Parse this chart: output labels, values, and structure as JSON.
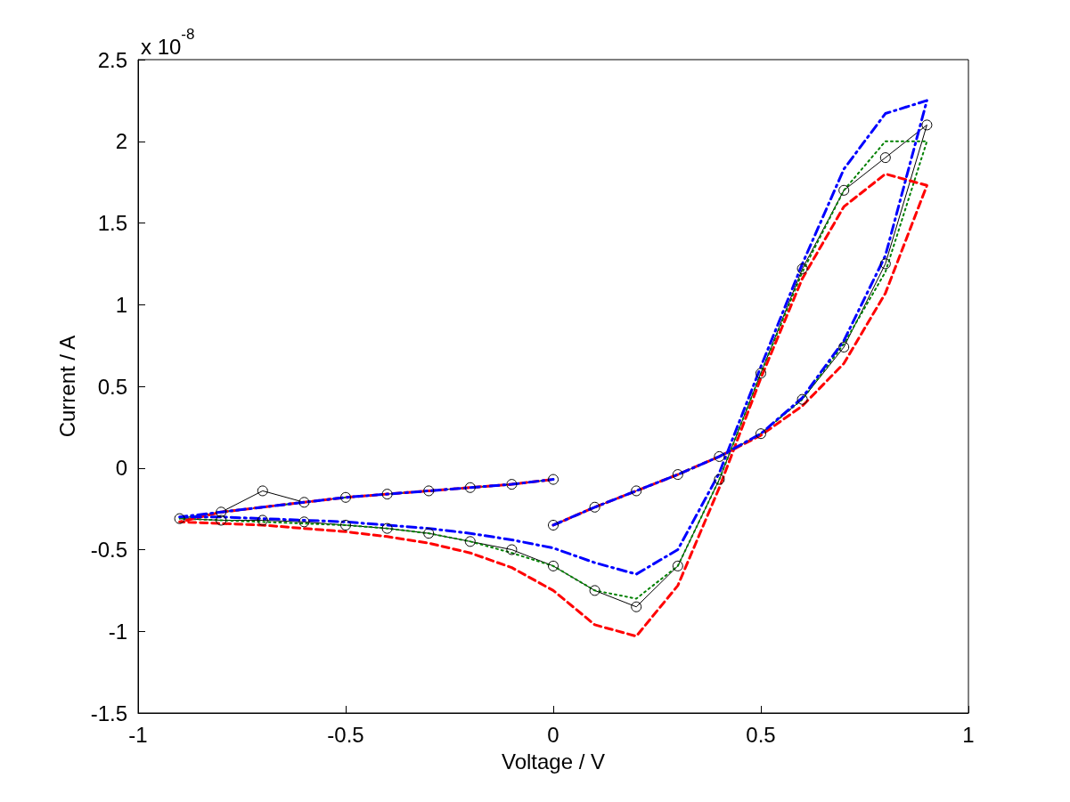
{
  "chart_data": {
    "type": "line",
    "xlabel": "Voltage / V",
    "ylabel": "Current / A",
    "annotations": [
      "x 10$^{-8}$"
    ],
    "x": [
      0,
      0.1,
      0.2,
      0.3,
      0.4,
      0.5,
      0.6,
      0.7,
      0.8,
      0.9,
      0.8,
      0.7,
      0.6,
      0.5,
      0.4,
      0.3,
      0.2,
      0.1,
      0,
      -0.1,
      -0.2,
      -0.3,
      -0.4,
      -0.5,
      -0.6,
      -0.7,
      -0.8,
      -0.9,
      -0.8,
      -0.7,
      -0.6,
      -0.5,
      -0.4,
      -0.3,
      -0.2,
      -0.1,
      0
    ],
    "series": [
      {
        "color": "#000000",
        "line_style": "solid",
        "marker": "circle",
        "values": [
          -0.35,
          -0.24,
          -0.14,
          -0.04,
          0.07,
          0.21,
          0.42,
          0.74,
          1.25,
          2.1,
          1.9,
          1.7,
          1.22,
          0.58,
          -0.07,
          -0.6,
          -0.85,
          -0.75,
          -0.6,
          -0.5,
          -0.45,
          -0.4,
          -0.37,
          -0.35,
          -0.33,
          -0.32,
          -0.32,
          -0.31,
          -0.27,
          -0.14,
          -0.21,
          -0.18,
          -0.16,
          -0.14,
          -0.12,
          -0.1,
          -0.07
        ]
      },
      {
        "color": "#008000",
        "line_style": "dotted",
        "marker": "none",
        "values": [
          null,
          null,
          null,
          -0.04,
          0.07,
          0.21,
          0.42,
          0.76,
          1.2,
          2.0,
          2.0,
          1.7,
          1.2,
          0.58,
          -0.07,
          -0.6,
          -0.8,
          -0.75,
          -0.6,
          -0.52,
          -0.45,
          -0.4,
          -0.37,
          -0.35,
          -0.34,
          -0.33,
          -0.32,
          -0.31,
          -0.27,
          -0.24,
          -0.21,
          -0.18,
          -0.16,
          -0.14,
          -0.12,
          -0.1,
          -0.07
        ]
      },
      {
        "color": "#ff0000",
        "line_style": "dashed",
        "marker": "none",
        "values": [
          -0.35,
          -0.24,
          -0.14,
          -0.04,
          0.07,
          0.2,
          0.38,
          0.64,
          1.07,
          1.73,
          1.8,
          1.6,
          1.16,
          0.55,
          -0.12,
          -0.72,
          -1.03,
          -0.96,
          -0.75,
          -0.61,
          -0.52,
          -0.46,
          -0.42,
          -0.39,
          -0.37,
          -0.35,
          -0.34,
          -0.33,
          -0.27,
          -0.24,
          -0.21,
          -0.18,
          -0.16,
          -0.14,
          -0.12,
          -0.1,
          -0.07
        ]
      },
      {
        "color": "#0000ff",
        "line_style": "dashdot",
        "marker": "none",
        "values": [
          -0.35,
          -0.24,
          -0.14,
          -0.04,
          0.07,
          0.21,
          0.43,
          0.78,
          1.3,
          2.25,
          2.17,
          1.83,
          1.25,
          0.62,
          -0.03,
          -0.5,
          -0.65,
          -0.58,
          -0.49,
          -0.44,
          -0.4,
          -0.37,
          -0.35,
          -0.33,
          -0.32,
          -0.31,
          -0.3,
          -0.3,
          -0.27,
          -0.24,
          -0.21,
          -0.18,
          -0.16,
          -0.14,
          -0.12,
          -0.1,
          -0.07
        ]
      }
    ],
    "xlim": [
      -1,
      1
    ],
    "xticks": [
      -1,
      -0.5,
      0,
      0.5,
      1
    ],
    "ylim": [
      -1.5,
      2.5
    ],
    "yticks": [
      -1.5,
      -1,
      -0.5,
      0,
      0.5,
      1,
      1.5,
      2,
      2.5
    ],
    "grid": false
  }
}
